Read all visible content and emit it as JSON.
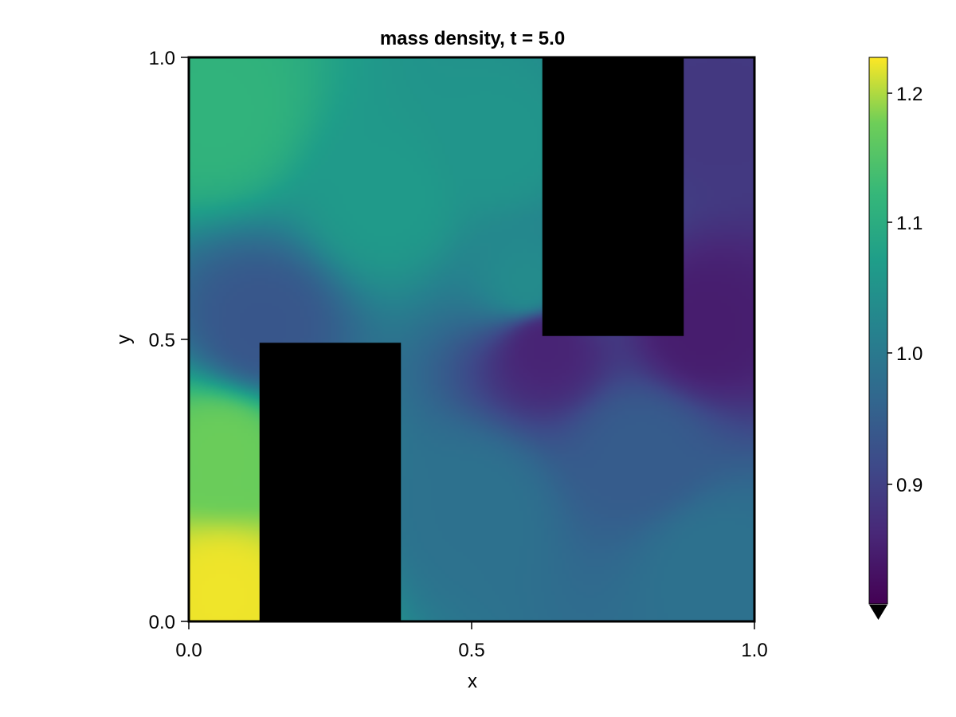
{
  "chart_data": {
    "type": "heatmap",
    "title": "mass density, t = 5.0",
    "xlabel": "x",
    "ylabel": "y",
    "xlim": [
      0.0,
      1.0
    ],
    "ylim": [
      0.0,
      1.0
    ],
    "x_ticks": [
      "0.0",
      "0.5",
      "1.0"
    ],
    "y_ticks": [
      "0.0",
      "0.5",
      "1.0"
    ],
    "grid": false,
    "colormap": "viridis",
    "colorbar": {
      "range": [
        0.8,
        1.225
      ],
      "ticks": [
        "0.9",
        "1.0",
        "1.1",
        "1.2"
      ],
      "extend": "min",
      "extend_color": "#000000"
    },
    "obstacles": [
      {
        "x0": 0.125,
        "x1": 0.375,
        "y0": 0.0,
        "y1": 0.494,
        "color": "#000000"
      },
      {
        "x0": 0.625,
        "x1": 0.875,
        "y0": 0.506,
        "y1": 1.0,
        "color": "#000000"
      }
    ],
    "approx_density_field": {
      "description_points": [
        {
          "x": 0.06,
          "y": 0.05,
          "value": 1.22
        },
        {
          "x": 0.06,
          "y": 0.3,
          "value": 1.17
        },
        {
          "x": 0.05,
          "y": 0.9,
          "value": 1.11
        },
        {
          "x": 0.35,
          "y": 0.75,
          "value": 1.06
        },
        {
          "x": 0.55,
          "y": 0.85,
          "value": 1.05
        },
        {
          "x": 0.13,
          "y": 0.52,
          "value": 0.93
        },
        {
          "x": 0.6,
          "y": 0.6,
          "value": 1.03
        },
        {
          "x": 0.5,
          "y": 0.2,
          "value": 0.98
        },
        {
          "x": 0.8,
          "y": 0.3,
          "value": 0.94
        },
        {
          "x": 0.93,
          "y": 0.1,
          "value": 0.98
        },
        {
          "x": 0.92,
          "y": 0.9,
          "value": 0.88
        },
        {
          "x": 0.91,
          "y": 0.52,
          "value": 0.84
        },
        {
          "x": 0.63,
          "y": 0.49,
          "value": 0.85
        }
      ]
    }
  }
}
